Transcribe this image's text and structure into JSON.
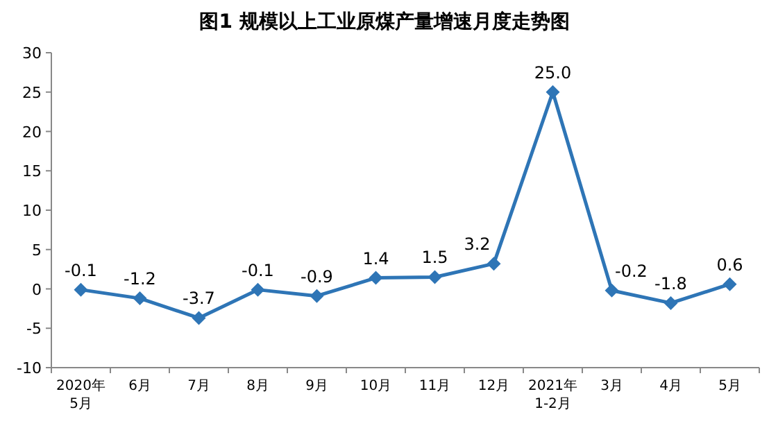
{
  "chart_data": {
    "type": "line",
    "title": "图1  规模以上工业原煤产量增速月度走势图",
    "categories": [
      "2020年\n5月",
      "6月",
      "7月",
      "8月",
      "9月",
      "10月",
      "11月",
      "12月",
      "2021年\n1-2月",
      "3月",
      "4月",
      "5月"
    ],
    "values": [
      -0.1,
      -1.2,
      -3.7,
      -0.1,
      -0.9,
      1.4,
      1.5,
      3.2,
      25.0,
      -0.2,
      -1.8,
      0.6
    ],
    "value_labels": [
      "-0.1",
      "-1.2",
      "-3.7",
      "-0.1",
      "-0.9",
      "1.4",
      "1.5",
      "3.2",
      "25.0",
      "-0.2",
      "-1.8",
      "0.6"
    ],
    "color": "#2e75b6",
    "marker": "diamond",
    "grid": false,
    "ylim": [
      -10,
      30
    ],
    "yticks": [
      -10,
      -5,
      0,
      5,
      10,
      15,
      20,
      25,
      30
    ]
  }
}
